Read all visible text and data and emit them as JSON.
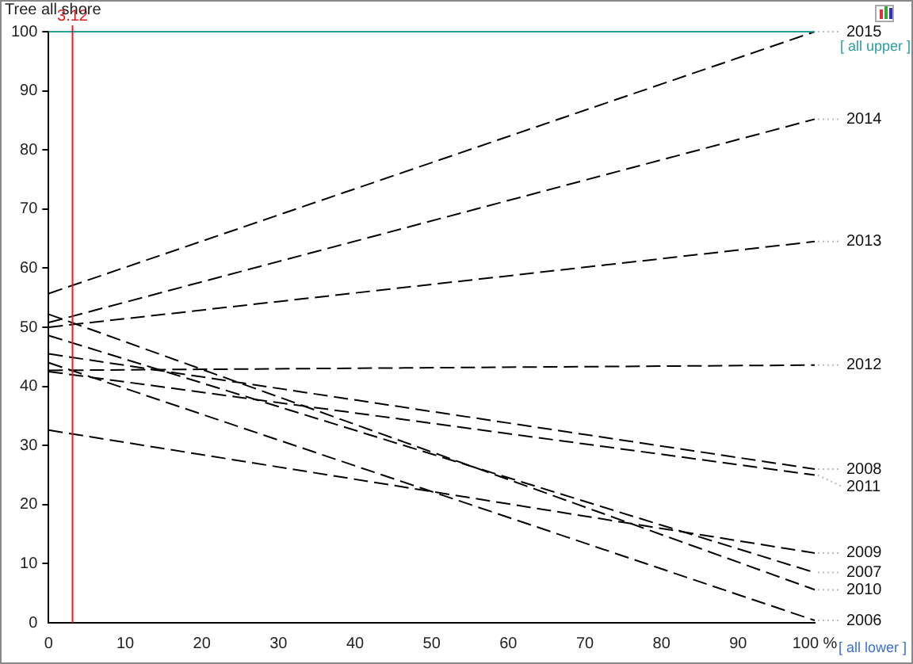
{
  "chart_data": {
    "type": "line",
    "title": "Tree all shore",
    "x": [
      0,
      100
    ],
    "series": [
      {
        "name": "2015",
        "color": "#000000",
        "values": [
          55.7,
          100
        ]
      },
      {
        "name": "2014",
        "color": "#000000",
        "values": [
          50.8,
          85.2
        ]
      },
      {
        "name": "2013",
        "color": "#000000",
        "values": [
          50,
          64.5
        ]
      },
      {
        "name": "2012",
        "color": "#000000",
        "values": [
          42.7,
          43.6
        ]
      },
      {
        "name": "2008",
        "color": "#000000",
        "values": [
          45.5,
          26
        ]
      },
      {
        "name": "2011",
        "color": "#000000",
        "values": [
          42.5,
          25
        ]
      },
      {
        "name": "2009",
        "color": "#000000",
        "values": [
          32.6,
          11.8
        ]
      },
      {
        "name": "2007",
        "color": "#000000",
        "values": [
          48.6,
          8.5
        ]
      },
      {
        "name": "2010",
        "color": "#000000",
        "values": [
          52.2,
          5.6
        ]
      },
      {
        "name": "2006",
        "color": "#000000",
        "values": [
          44,
          0.4
        ]
      }
    ],
    "xlim": [
      0,
      100
    ],
    "xticks": [
      0,
      10,
      20,
      30,
      40,
      50,
      60,
      70,
      80,
      90,
      {
        "value": 100,
        "label": "100 %"
      }
    ],
    "ylim": [
      0,
      100
    ],
    "yticks": [
      0,
      10,
      20,
      30,
      40,
      50,
      60,
      70,
      80,
      90,
      100
    ],
    "ref_lines": [
      {
        "axis": "y",
        "value": 100,
        "label": "[ all upper ]",
        "color": "#2a9d9d"
      },
      {
        "axis": "x",
        "value": 3.12,
        "label": "3.12",
        "color": "#e02020"
      }
    ],
    "annotations": [
      "[ all lower ]"
    ],
    "grid": false,
    "legend": false,
    "marker": "none",
    "line_style": "dashed"
  }
}
